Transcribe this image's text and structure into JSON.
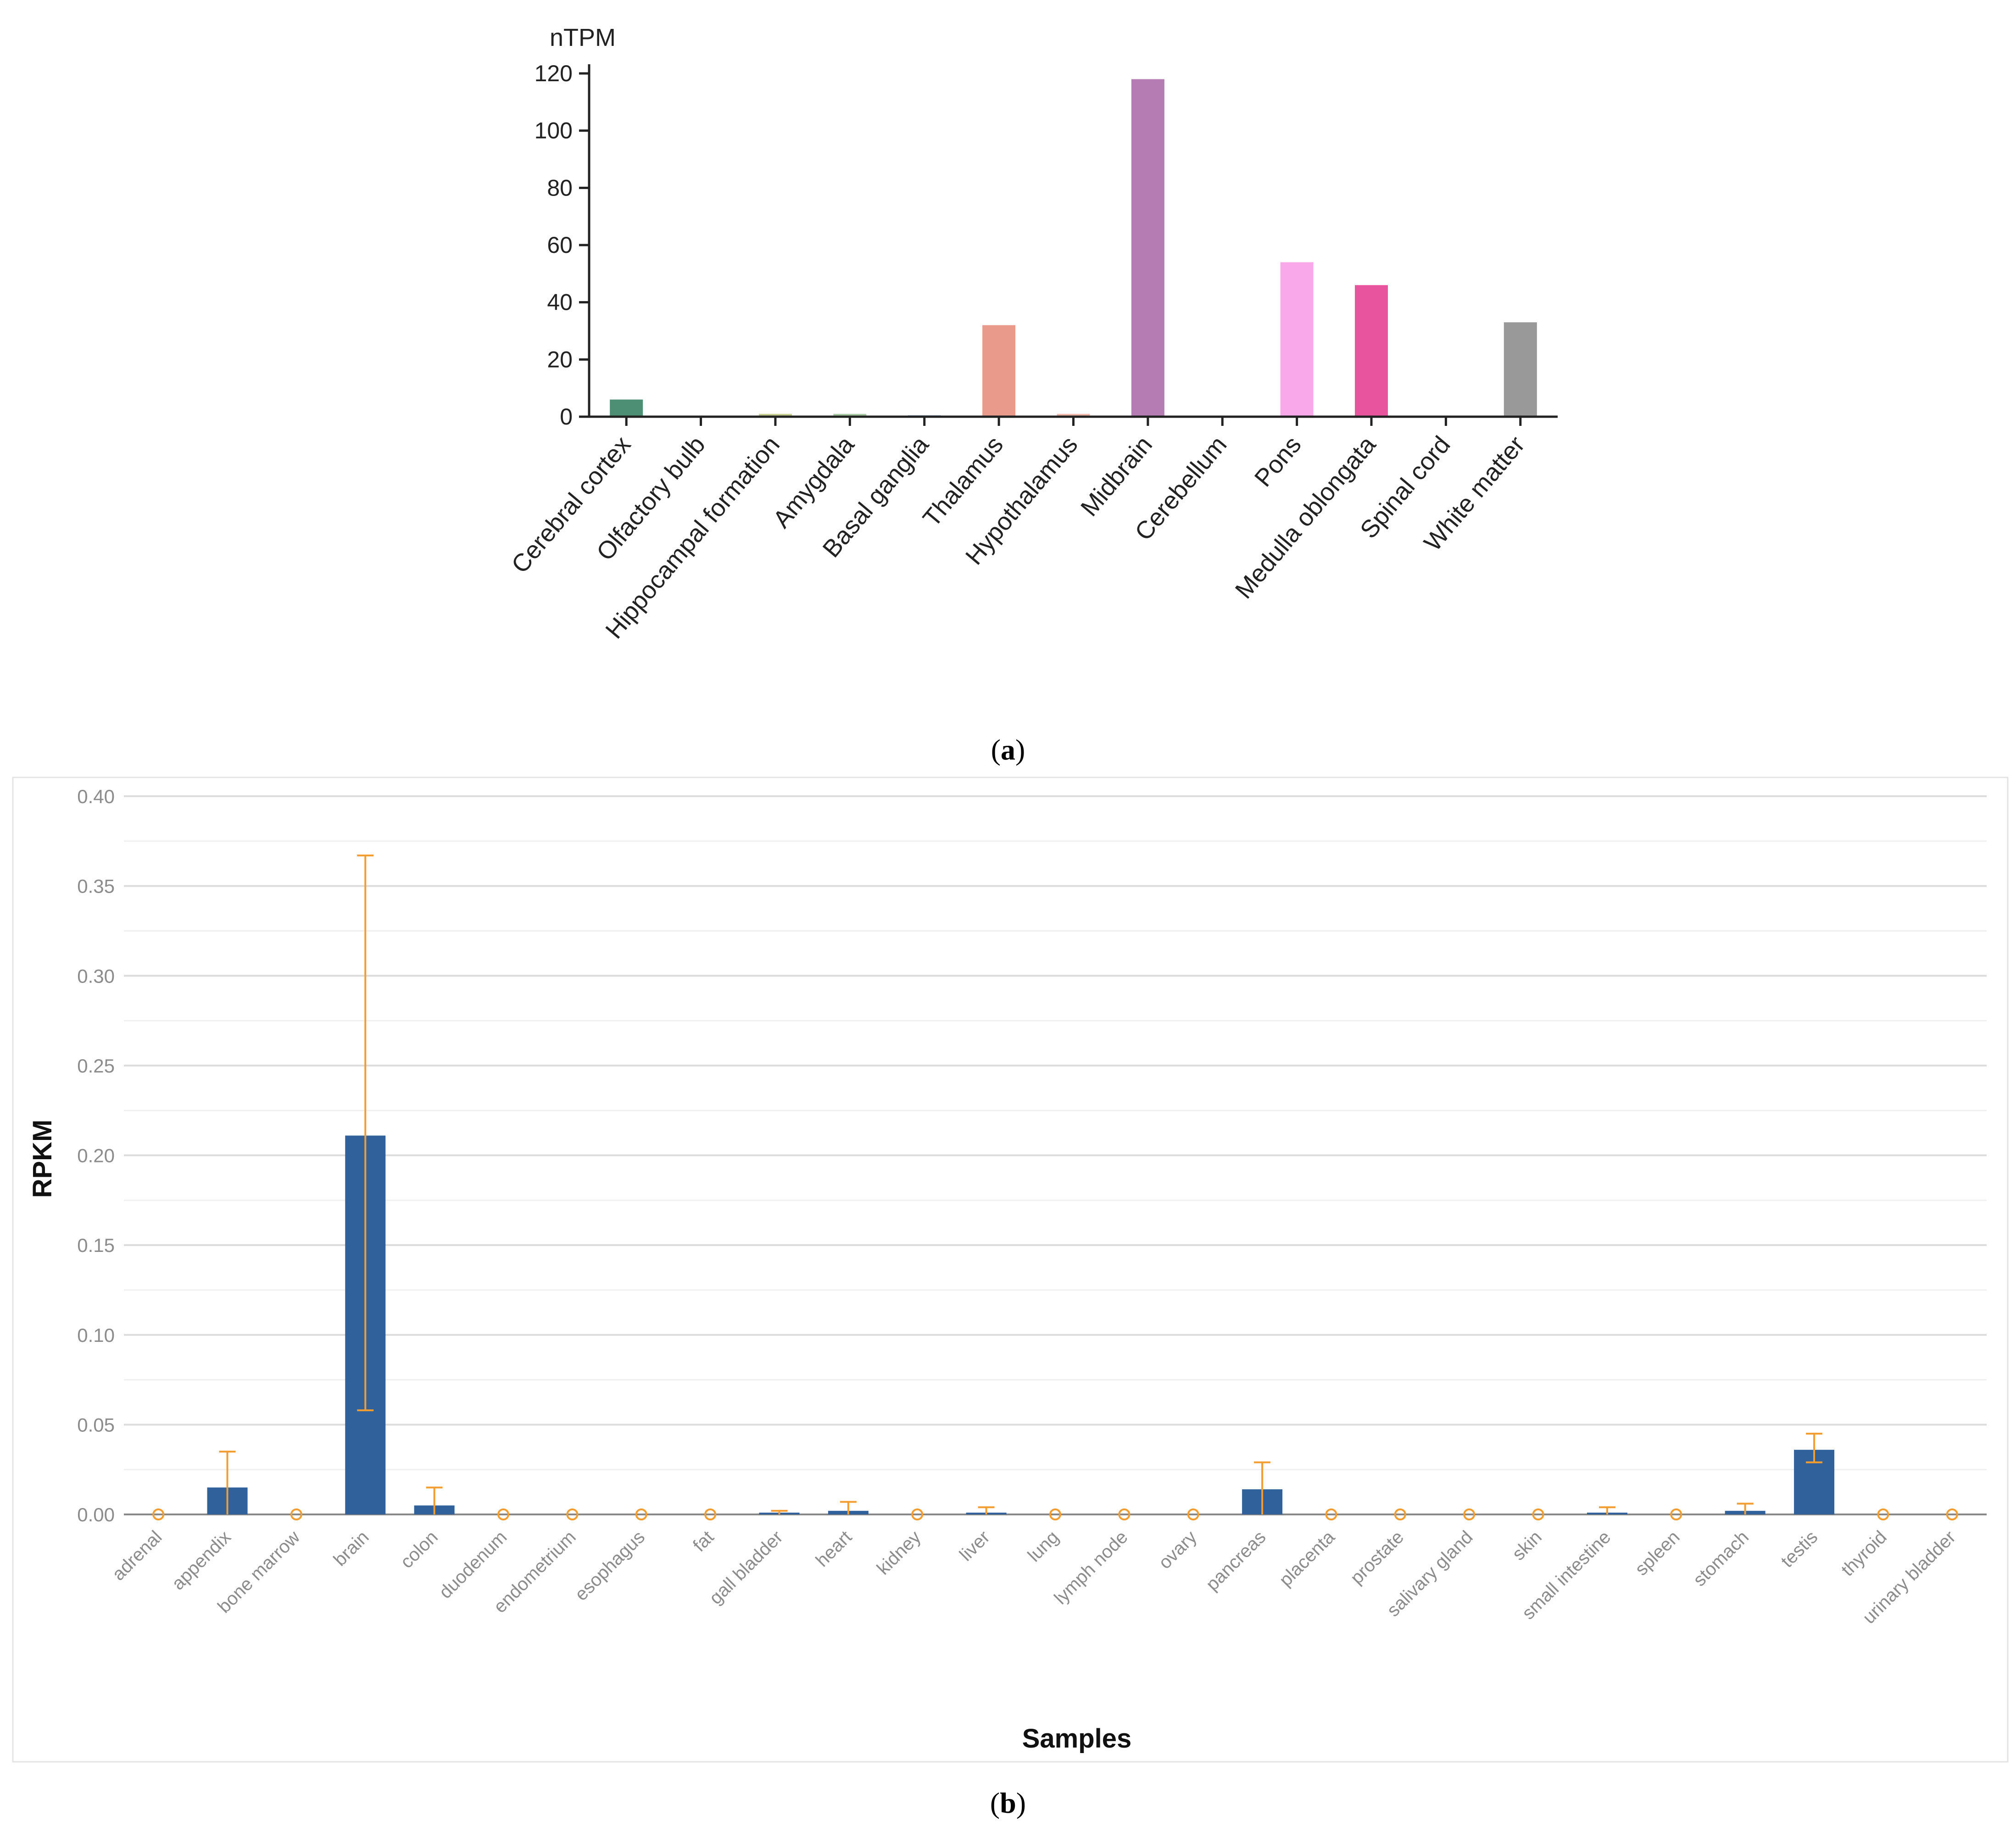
{
  "chart_data": [
    {
      "type": "bar",
      "panel_label": "a",
      "title": "",
      "ylabel": "nTPM",
      "xlabel": "",
      "ylim": [
        0,
        120
      ],
      "yticks": [
        0,
        20,
        40,
        60,
        80,
        100,
        120
      ],
      "grid": false,
      "categories": [
        "Cerebral cortex",
        "Olfactory bulb",
        "Hippocampal formation",
        "Amygdala",
        "Basal ganglia",
        "Thalamus",
        "Hypothalamus",
        "Midbrain",
        "Cerebellum",
        "Pons",
        "Medulla oblongata",
        "Spinal cord",
        "White matter"
      ],
      "values": [
        6,
        0,
        1,
        1,
        0.5,
        32,
        1,
        118,
        0,
        54,
        46,
        0,
        33
      ],
      "colors": [
        "#4d8f75",
        "#8fa8c8",
        "#c6cf8f",
        "#a9c9a2",
        "#93b5d2",
        "#e99a8a",
        "#efb7aa",
        "#b57cb4",
        "#9ccfe2",
        "#f9a8ea",
        "#e9549e",
        "#f3b7cf",
        "#999999"
      ]
    },
    {
      "type": "bar",
      "panel_label": "b",
      "title": "",
      "ylabel": "RPKM",
      "xlabel": "Samples",
      "ylim": [
        0,
        0.4
      ],
      "yticks": [
        "0.00",
        "0.05",
        "0.10",
        "0.15",
        "0.20",
        "0.25",
        "0.30",
        "0.35",
        "0.40"
      ],
      "grid": true,
      "bar_color": "#30619a",
      "error_color": "#f39c2f",
      "categories": [
        "adrenal",
        "appendix",
        "bone marrow",
        "brain",
        "colon",
        "duodenum",
        "endometrium",
        "esophagus",
        "fat",
        "gall bladder",
        "heart",
        "kidney",
        "liver",
        "lung",
        "lymph node",
        "ovary",
        "pancreas",
        "placenta",
        "prostate",
        "salivary gland",
        "skin",
        "small intestine",
        "spleen",
        "stomach",
        "testis",
        "thyroid",
        "urinary bladder"
      ],
      "values": [
        0.0,
        0.015,
        0.0,
        0.211,
        0.005,
        0.0,
        0.0,
        0.0,
        0.0,
        0.001,
        0.002,
        0.0,
        0.001,
        0.0,
        0.0,
        0.0,
        0.014,
        0.0,
        0.0,
        0.0,
        0.0,
        0.001,
        0.0,
        0.002,
        0.036,
        0.0,
        0.0
      ],
      "error_low": [
        0.0,
        0.0,
        0.0,
        0.058,
        0.0,
        0.0,
        0.0,
        0.0,
        0.0,
        0.0,
        0.0,
        0.0,
        0.0,
        0.0,
        0.0,
        0.0,
        0.0,
        0.0,
        0.0,
        0.0,
        0.0,
        0.0,
        0.0,
        0.0,
        0.029,
        0.0,
        0.0
      ],
      "error_high": [
        0.0,
        0.035,
        0.0,
        0.367,
        0.015,
        0.0,
        0.0,
        0.0,
        0.0,
        0.002,
        0.007,
        0.0,
        0.004,
        0.0,
        0.0,
        0.0,
        0.029,
        0.0,
        0.0,
        0.0,
        0.0,
        0.004,
        0.0,
        0.006,
        0.045,
        0.0,
        0.0
      ]
    }
  ]
}
